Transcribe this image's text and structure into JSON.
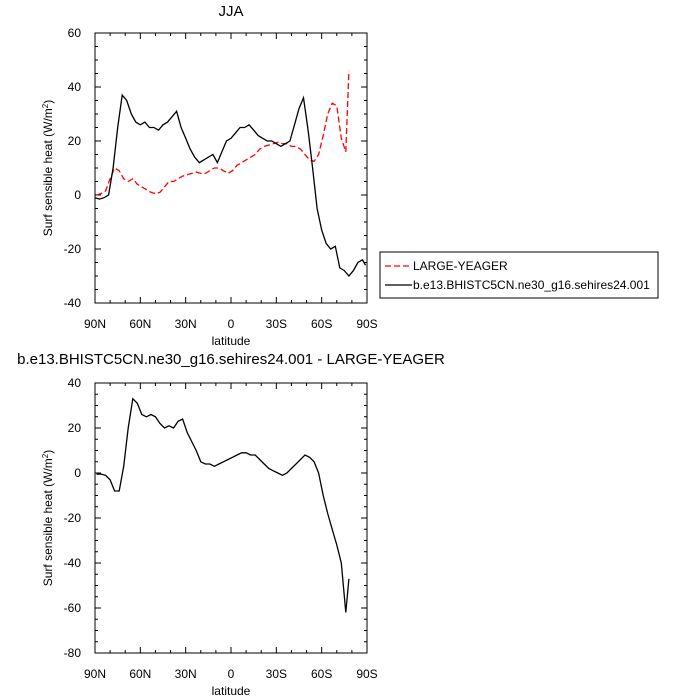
{
  "chart_data": [
    {
      "type": "line",
      "title": "JJA",
      "xlabel": "latitude",
      "ylabel": "Surf sensible heat (W/m",
      "ylabel_sup": "2",
      "ylabel_close": ")",
      "xlim": [
        90,
        -90
      ],
      "ylim": [
        -40,
        60
      ],
      "xticks": [
        90,
        60,
        30,
        0,
        -30,
        -60,
        -90
      ],
      "xtick_labels": [
        "90N",
        "60N",
        "30N",
        "0",
        "30S",
        "60S",
        "90S"
      ],
      "yticks": [
        -40,
        -20,
        0,
        20,
        40,
        60
      ],
      "ytick_labels": [
        "-40",
        "-20",
        "0",
        "20",
        "40",
        "60"
      ],
      "legend_position": "right",
      "series": [
        {
          "name": "LARGE-YEAGER",
          "color": "#ff0000",
          "dash": "dashed",
          "x": [
            89,
            86,
            83,
            80,
            77,
            74,
            71,
            68,
            65,
            62,
            59,
            56,
            53,
            50,
            47,
            44,
            41,
            38,
            35,
            32,
            29,
            26,
            23,
            20,
            17,
            14,
            11,
            8,
            5,
            2,
            -1,
            -4,
            -7,
            -10,
            -13,
            -16,
            -19,
            -22,
            -25,
            -28,
            -31,
            -34,
            -37,
            -40,
            -43,
            -46,
            -49,
            -52,
            -55,
            -58,
            -61,
            -64,
            -67,
            -70,
            -73,
            -76,
            -78
          ],
          "y": [
            0,
            0.5,
            1.5,
            6,
            10,
            9,
            6,
            5,
            6,
            4,
            3,
            2,
            1,
            0.5,
            1,
            3,
            5,
            5,
            6,
            7,
            7.5,
            8,
            8.5,
            8,
            8,
            9,
            10,
            10,
            9,
            8,
            9,
            11,
            12,
            13,
            14,
            15,
            17,
            18,
            18.5,
            19,
            19.5,
            19,
            19,
            18,
            18,
            17,
            15,
            13,
            12.5,
            15,
            22,
            30,
            34,
            33,
            21,
            16,
            46
          ]
        },
        {
          "name": "b.e13.BHISTC5CN.ne30_g16.sehires24.001",
          "color": "#000000",
          "dash": "solid",
          "x": [
            90,
            87,
            84,
            81,
            78,
            75,
            72,
            69,
            66,
            63,
            60,
            57,
            54,
            51,
            48,
            45,
            42,
            39,
            36,
            33,
            30,
            27,
            24,
            21,
            18,
            15,
            12,
            9,
            6,
            3,
            0,
            -3,
            -6,
            -9,
            -12,
            -15,
            -18,
            -21,
            -24,
            -27,
            -30,
            -33,
            -36,
            -39,
            -42,
            -45,
            -48,
            -51,
            -54,
            -57,
            -60,
            -63,
            -66,
            -69,
            -72,
            -75,
            -78,
            -81,
            -84,
            -87,
            -89
          ],
          "y": [
            -1,
            -1.5,
            -1,
            0,
            10,
            25,
            37,
            35,
            30,
            27,
            26,
            27,
            25,
            25,
            24,
            26,
            27,
            29,
            31,
            25,
            21,
            17,
            14,
            12,
            13,
            14,
            15,
            12,
            16,
            20,
            21,
            23,
            25,
            25,
            26,
            24,
            22,
            21,
            20,
            20,
            19,
            18,
            19,
            20,
            26,
            32,
            36,
            24,
            10,
            -5,
            -13,
            -18,
            -20,
            -19,
            -27,
            -28,
            -30,
            -28,
            -25,
            -24,
            -26
          ]
        }
      ]
    },
    {
      "type": "line",
      "title": "b.e13.BHISTC5CN.ne30_g16.sehires24.001 - LARGE-YEAGER",
      "xlabel": "latitude",
      "ylabel": "Surf sensible heat (W/m",
      "ylabel_sup": "2",
      "ylabel_close": ")",
      "xlim": [
        90,
        -90
      ],
      "ylim": [
        -80,
        40
      ],
      "xticks": [
        90,
        60,
        30,
        0,
        -30,
        -60,
        -90
      ],
      "xtick_labels": [
        "90N",
        "60N",
        "30N",
        "0",
        "30S",
        "60S",
        "90S"
      ],
      "yticks": [
        -80,
        -60,
        -40,
        -20,
        0,
        20,
        40
      ],
      "ytick_labels": [
        "-80",
        "-60",
        "-40",
        "-20",
        "0",
        "20",
        "40"
      ],
      "series": [
        {
          "color": "#000000",
          "dash": "solid",
          "x": [
            89,
            86,
            83,
            80,
            77,
            74,
            71,
            68,
            65,
            62,
            59,
            56,
            53,
            50,
            47,
            44,
            41,
            38,
            35,
            32,
            29,
            26,
            23,
            20,
            17,
            14,
            11,
            8,
            5,
            2,
            -1,
            -4,
            -7,
            -10,
            -13,
            -16,
            -19,
            -22,
            -25,
            -28,
            -31,
            -34,
            -37,
            -40,
            -43,
            -46,
            -49,
            -52,
            -55,
            -58,
            -61,
            -64,
            -67,
            -70,
            -73,
            -76,
            -78
          ],
          "y": [
            -0.5,
            -0.5,
            -1,
            -3,
            -8,
            -8,
            3,
            20,
            33,
            31,
            26,
            25,
            26,
            25,
            22,
            20,
            21,
            20,
            23,
            24,
            18,
            14,
            10,
            5,
            4,
            4,
            3,
            4,
            5,
            6,
            7,
            8,
            9,
            9,
            8,
            8,
            6,
            4,
            2,
            1,
            0,
            -1,
            0,
            2,
            4,
            6,
            8,
            7,
            5,
            0,
            -10,
            -18,
            -25,
            -32,
            -40,
            -62,
            -47
          ]
        }
      ]
    }
  ],
  "legend": [
    {
      "label": "LARGE-YEAGER",
      "color": "#ff0000",
      "dash": "dashed"
    },
    {
      "label": "b.e13.BHISTC5CN.ne30_g16.sehires24.001",
      "color": "#000000",
      "dash": "solid"
    }
  ]
}
